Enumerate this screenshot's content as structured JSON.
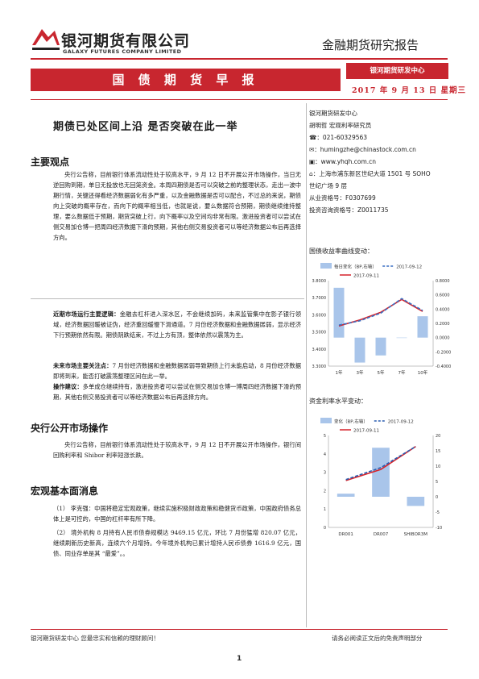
{
  "header": {
    "company_cn": "银河期货有限公司",
    "company_en": "GALAXY FUTURES COMPANY LIMITED",
    "report_type": "金融期货研究报告"
  },
  "banner": {
    "title": "国 债 期 货 早 报"
  },
  "center": {
    "name": "银河期货研发中心"
  },
  "date_line": "2017 年 9 月 13 日   星期三",
  "headline": "期债已处区间上沿   是否突破在此一举",
  "sidebar": {
    "dept": "银河期货研发中心",
    "analyst": "胡明哲   宏观利率研究员",
    "phone": "021-60329563",
    "email": "humingzhe@chinastock.com.cn",
    "web": "www.yhqh.com.cn",
    "address_1": "上海市浦东新区世纪大道 1501 号 SOHO",
    "address_2": "世纪广场 9 层",
    "license_1": "从业资格号：F0307699",
    "license_2": "投资咨询资格号：Z0011735"
  },
  "sections": {
    "main_view_title": "主要观点",
    "main_view_p1": "央行公告称，目前银行体系流动性处于较高水平，9 月 12 日不开展公开市场操作，当日无逆回购到期，单日无投放也无回笼资金。本周四期债是否可以突破之前的整理状态，走出一波中期行情，关键还得看经济数据弱化有多严重，以及金融数据是否可以配合，不过总的来说，期债向上突破的概率存在，而向下的概率相当低，也就是说，要么数据符合预期，期债继续维持整理，要么数据低于预期，期货突破上行，向下概率以及空间均非常有限。激进投资者可以尝试在侧交易加仓博一把周四经济数据下滑的预期，其他右侧交易投资者可以等经济数据公布后再选择方向。",
    "logic_label": "近期市场运行主要逻辑：",
    "logic_text": "金融去杠杆进入深水区，不会继续加码，未来监管集中在影子银行领域，经济数据回暖被证伪，经济重回缓慢下滑通道。7 月份经济数据和金融数据孱弱，显示经济下行预期依然有限。期债阴跌结束，不过上方有顶，整体依然以震荡为主。",
    "focus_label": "未来市场主要关注点：",
    "focus_text": "7 月份经济数据和金融数据孱弱导致期债上行未能启动，8 月份经济数据即将到来，能否打破震荡整理区间在此一举。",
    "advice_label": "操作建议：",
    "advice_text": "多单成仓继续持有，激进投资者可以尝试在侧交易加仓博一博周四经济数据下滑的预期，其他右侧交易投资者可以等经济数据公布后再选择方向。",
    "omo_title": "央行公开市场操作",
    "omo_p1": "央行公告称，目前银行体系流动性处于较高水平，9 月 12 日不开展公开市场操作，银行间回购利率和 Shibor 利率短涨长跌。",
    "macro_title": "宏观基本面消息",
    "macro_p1": "（1） 李克强：中国将稳定宏观政策，继续实施积极财政政策和稳健货币政策，中国政府债务总体上是可控的，中国的杠杆率有所下降。",
    "macro_p2": "（2） 境外机构 8 月持有人民币债券规模达 9469.15 亿元，环比 7 月份猛增 820.07 亿元，继续刷新历史新高，连续六个月增持。今年境外机构已累计增持人民币债券 1616.9 亿元，国债、同业存单是其 “最爱”。。"
  },
  "chart1": {
    "title": "国债收益率曲线变动：",
    "legend_bar": "每日变化（BP,右轴）",
    "legend_a": "2017-09-12",
    "legend_b": "2017-09-11",
    "bar_color": "#a9c5ea",
    "line_a_color": "#3a6fc4",
    "line_b_color": "#d6232a"
  },
  "chart2": {
    "title": "资金利率水平变动：",
    "legend_bar": "变化（BP,右轴）",
    "legend_a": "2017-09-12",
    "legend_b": "2017-09-11",
    "bar_color": "#a9c5ea",
    "line_a_color": "#2a5db0",
    "line_b_color": "#d6232a"
  },
  "chart_data": [
    {
      "type": "bar",
      "categories": [
        "1年",
        "3年",
        "5年",
        "7年",
        "10年"
      ],
      "series": [
        {
          "name": "每日变化（BP,右轴）",
          "axis": "right",
          "values": [
            0.7,
            -0.35,
            -0.25,
            0,
            0.3
          ]
        },
        {
          "name": "2017-09-12",
          "type": "line",
          "values": [
            3.54,
            3.565,
            3.61,
            3.695,
            3.625
          ]
        },
        {
          "name": "2017-09-11",
          "type": "line",
          "values": [
            3.535,
            3.57,
            3.615,
            3.69,
            3.62
          ]
        }
      ],
      "ylim": [
        3.3,
        3.8
      ],
      "yticks": [
        "3.3000",
        "3.4000",
        "3.5000",
        "3.6000",
        "3.7000",
        "3.8000"
      ],
      "y2lim": [
        -0.4,
        0.8
      ],
      "y2ticks": [
        "-0.4000",
        "-0.2000",
        "0.0000",
        "0.2000",
        "0.4000",
        "0.6000",
        "0.8000"
      ]
    },
    {
      "type": "bar",
      "categories": [
        "DR001",
        "DR007",
        "SHIBOR3M"
      ],
      "series": [
        {
          "name": "变化（BP,右轴）",
          "axis": "right",
          "values": [
            1,
            16,
            -3
          ]
        },
        {
          "name": "2017-09-12",
          "type": "line",
          "values": [
            2.6,
            3.25,
            4.4
          ]
        },
        {
          "name": "2017-09-11",
          "type": "line",
          "values": [
            2.55,
            3.15,
            4.4
          ]
        }
      ],
      "ylim": [
        0,
        5
      ],
      "yticks": [
        "0",
        "1",
        "2",
        "3",
        "4",
        "5"
      ],
      "y2lim": [
        -10,
        20
      ],
      "y2ticks": [
        "-10",
        "-5",
        "0",
        "5",
        "10",
        "15",
        "20"
      ]
    }
  ],
  "footer": {
    "left": "银河期货研发中心  您最忠实和信赖的理财顾问！",
    "right": "请务必阅读正文后的免责声明部分",
    "page": "1"
  }
}
